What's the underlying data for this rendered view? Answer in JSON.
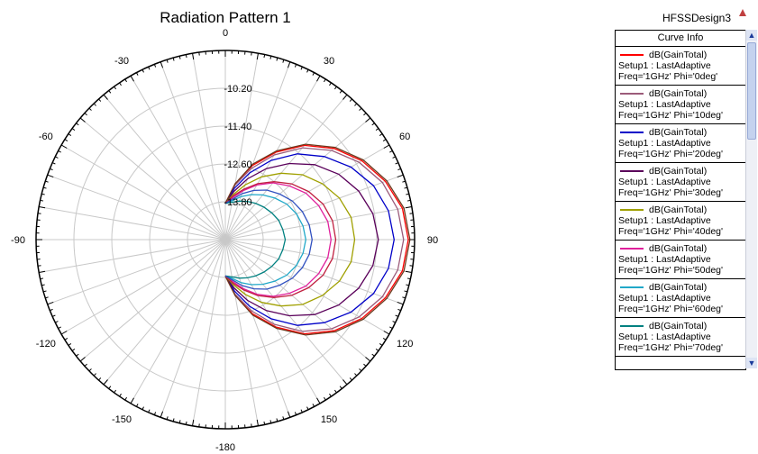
{
  "chart_data": {
    "type": "polar-line",
    "title": "Radiation Pattern 1",
    "angle_ticks": [
      0,
      30,
      60,
      90,
      120,
      150,
      -180,
      -150,
      -120,
      -90,
      -60,
      -30
    ],
    "radial_ticks": [
      "-10.20",
      "-11.40",
      "-12.60",
      "-13.80"
    ],
    "rlim": [
      -15,
      -9
    ],
    "theta_samples": [
      0,
      10,
      20,
      30,
      40,
      50,
      60,
      70,
      80,
      90,
      100,
      110,
      120,
      130,
      140,
      150,
      160,
      170,
      180
    ],
    "series": [
      {
        "name": "dB(GainTotal)\nSetup1 : LastAdaptive\nFreq='1GHz' Phi='0deg'",
        "color": "#ff0000",
        "values": [
          -13.85,
          -13.2,
          -12.5,
          -11.8,
          -11.1,
          -10.5,
          -10.0,
          -9.6,
          -9.3,
          -9.2,
          -9.3,
          -9.6,
          -10.0,
          -10.5,
          -11.1,
          -11.8,
          -12.5,
          -13.2,
          -13.85
        ]
      },
      {
        "name": "dB(GainTotal)\nSetup1 : LastAdaptive\nFreq='1GHz' Phi='10deg'",
        "color": "#9b5b7a",
        "values": [
          -13.85,
          -13.25,
          -12.6,
          -11.9,
          -11.2,
          -10.6,
          -10.1,
          -9.7,
          -9.45,
          -9.35,
          -9.45,
          -9.7,
          -10.1,
          -10.6,
          -11.2,
          -11.9,
          -12.6,
          -13.25,
          -13.85
        ]
      },
      {
        "name": "dB(GainTotal)\nSetup1 : LastAdaptive\nFreq='1GHz' Phi='20deg'",
        "color": "#0000c8",
        "values": [
          -13.85,
          -13.35,
          -12.75,
          -12.1,
          -11.45,
          -10.9,
          -10.4,
          -10.0,
          -9.75,
          -9.65,
          -9.75,
          -10.0,
          -10.4,
          -10.9,
          -11.45,
          -12.1,
          -12.75,
          -13.35,
          -13.85
        ]
      },
      {
        "name": "dB(GainTotal)\nSetup1 : LastAdaptive\nFreq='1GHz' Phi='30deg'",
        "color": "#5a005a",
        "values": [
          -13.85,
          -13.45,
          -12.95,
          -12.4,
          -11.85,
          -11.3,
          -10.85,
          -10.5,
          -10.25,
          -10.15,
          -10.25,
          -10.5,
          -10.85,
          -11.3,
          -11.85,
          -12.4,
          -12.95,
          -13.45,
          -13.85
        ]
      },
      {
        "name": "dB(GainTotal)\nSetup1 : LastAdaptive\nFreq='1GHz' Phi='40deg'",
        "color": "#a0a000",
        "values": [
          -13.85,
          -13.55,
          -13.15,
          -12.7,
          -12.25,
          -11.8,
          -11.45,
          -11.15,
          -10.95,
          -10.9,
          -10.95,
          -11.15,
          -11.45,
          -11.8,
          -12.25,
          -12.7,
          -13.15,
          -13.55,
          -13.85
        ]
      },
      {
        "name": "dB(GainTotal)\nSetup1 : LastAdaptive\nFreq='1GHz' Phi='50deg'",
        "color": "#e0209c",
        "values": [
          -13.85,
          -13.65,
          -13.35,
          -13.0,
          -12.65,
          -12.35,
          -12.05,
          -11.85,
          -11.7,
          -11.65,
          -11.7,
          -11.85,
          -12.05,
          -12.35,
          -12.65,
          -13.0,
          -13.35,
          -13.65,
          -13.85
        ]
      },
      {
        "name": "dB(GainTotal)\nSetup1 : LastAdaptive\nFreq='1GHz' Phi='60deg'",
        "color": "#20a8c8",
        "values": [
          -13.85,
          -13.75,
          -13.55,
          -13.35,
          -13.15,
          -12.95,
          -12.75,
          -12.6,
          -12.5,
          -12.45,
          -12.5,
          -12.6,
          -12.75,
          -12.95,
          -13.15,
          -13.35,
          -13.55,
          -13.75,
          -13.85
        ]
      },
      {
        "name": "dB(GainTotal)\nSetup1 : LastAdaptive\nFreq='1GHz' Phi='70deg'",
        "color": "#008080",
        "values": [
          -13.85,
          -13.8,
          -13.7,
          -13.6,
          -13.5,
          -13.4,
          -13.3,
          -13.2,
          -13.15,
          -13.1,
          -13.15,
          -13.2,
          -13.3,
          -13.4,
          -13.5,
          -13.6,
          -13.7,
          -13.8,
          -13.85
        ]
      },
      {
        "name": "",
        "color": "#6b3a1e",
        "values": [
          -13.85,
          -13.2,
          -12.45,
          -11.75,
          -11.05,
          -10.45,
          -9.95,
          -9.55,
          -9.25,
          -9.15,
          -9.25,
          -9.55,
          -9.95,
          -10.45,
          -11.05,
          -11.75,
          -12.45,
          -13.2,
          -13.85
        ]
      },
      {
        "name": "",
        "color": "#c02040",
        "values": [
          -13.85,
          -13.6,
          -13.3,
          -12.95,
          -12.6,
          -12.25,
          -11.95,
          -11.7,
          -11.55,
          -11.5,
          -11.55,
          -11.7,
          -11.95,
          -12.25,
          -12.6,
          -12.95,
          -13.3,
          -13.6,
          -13.85
        ]
      },
      {
        "name": "",
        "color": "#3050c0",
        "values": [
          -13.85,
          -13.7,
          -13.45,
          -13.2,
          -12.95,
          -12.75,
          -12.55,
          -12.4,
          -12.3,
          -12.25,
          -12.3,
          -12.4,
          -12.55,
          -12.75,
          -12.95,
          -13.2,
          -13.45,
          -13.7,
          -13.85
        ]
      }
    ]
  },
  "header": {
    "design_name": "HFSSDesign3"
  },
  "legend": {
    "heading": "Curve Info",
    "entries": [
      {
        "line1": "dB(GainTotal)",
        "line2": "Setup1 : LastAdaptive",
        "line3": "Freq='1GHz' Phi='0deg'",
        "color": "#ff0000"
      },
      {
        "line1": "dB(GainTotal)",
        "line2": "Setup1 : LastAdaptive",
        "line3": "Freq='1GHz' Phi='10deg'",
        "color": "#9b5b7a"
      },
      {
        "line1": "dB(GainTotal)",
        "line2": "Setup1 : LastAdaptive",
        "line3": "Freq='1GHz' Phi='20deg'",
        "color": "#0000c8"
      },
      {
        "line1": "dB(GainTotal)",
        "line2": "Setup1 : LastAdaptive",
        "line3": "Freq='1GHz' Phi='30deg'",
        "color": "#5a005a"
      },
      {
        "line1": "dB(GainTotal)",
        "line2": "Setup1 : LastAdaptive",
        "line3": "Freq='1GHz' Phi='40deg'",
        "color": "#a0a000"
      },
      {
        "line1": "dB(GainTotal)",
        "line2": "Setup1 : LastAdaptive",
        "line3": "Freq='1GHz' Phi='50deg'",
        "color": "#e0209c"
      },
      {
        "line1": "dB(GainTotal)",
        "line2": "Setup1 : LastAdaptive",
        "line3": "Freq='1GHz' Phi='60deg'",
        "color": "#20a8c8"
      },
      {
        "line1": "dB(GainTotal)",
        "line2": "Setup1 : LastAdaptive",
        "line3": "Freq='1GHz' Phi='70deg'",
        "color": "#008080"
      }
    ]
  },
  "icons": {
    "warning": "warning-triangle-icon",
    "scroll_up": "arrow-up-icon",
    "scroll_down": "arrow-down-icon"
  },
  "colors": {
    "grid": "#c8c8c8",
    "outer_ring": "#000000"
  }
}
